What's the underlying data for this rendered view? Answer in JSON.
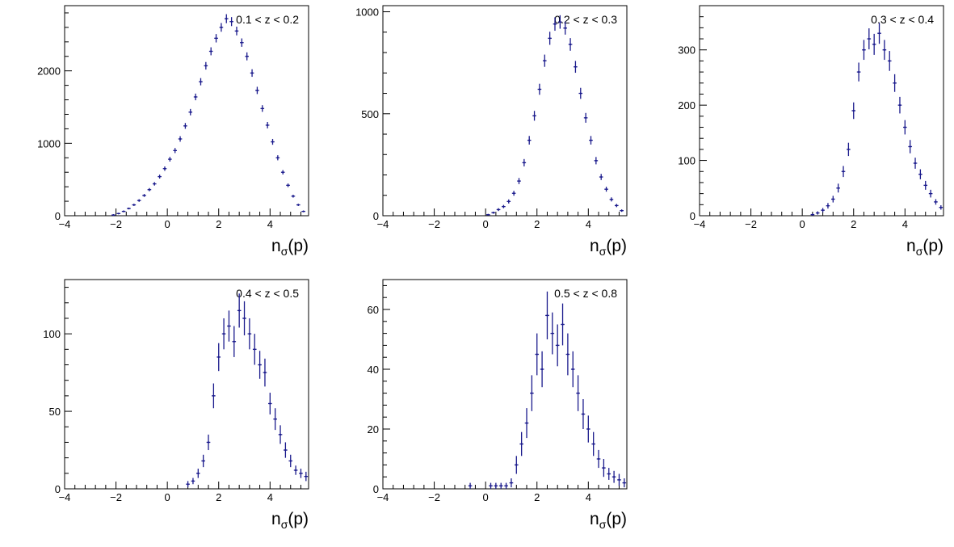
{
  "chart_data": [
    {
      "type": "scatter",
      "label": "0.1 < z < 0.2",
      "xlabel_main": "n",
      "xlabel_sub": "σ",
      "xlabel_arg": "(p)",
      "xlim": [
        -4,
        5.5
      ],
      "ylim": [
        0,
        2900
      ],
      "xticks": [
        -4,
        -2,
        0,
        2,
        4
      ],
      "yticks": [
        0,
        1000,
        2000
      ],
      "marker_color": "#1a1a8c",
      "x": [
        -2.1,
        -1.9,
        -1.7,
        -1.5,
        -1.3,
        -1.1,
        -0.9,
        -0.7,
        -0.5,
        -0.3,
        -0.1,
        0.1,
        0.3,
        0.5,
        0.7,
        0.9,
        1.1,
        1.3,
        1.5,
        1.7,
        1.9,
        2.1,
        2.3,
        2.5,
        2.7,
        2.9,
        3.1,
        3.3,
        3.5,
        3.7,
        3.9,
        4.1,
        4.3,
        4.5,
        4.7,
        4.9,
        5.1,
        5.3
      ],
      "y": [
        10,
        30,
        60,
        100,
        150,
        210,
        280,
        360,
        440,
        540,
        650,
        780,
        900,
        1060,
        1240,
        1430,
        1640,
        1850,
        2070,
        2270,
        2450,
        2600,
        2720,
        2680,
        2550,
        2390,
        2200,
        1970,
        1730,
        1480,
        1250,
        1020,
        800,
        600,
        420,
        270,
        150,
        60
      ],
      "yerr": [
        5,
        8,
        10,
        12,
        15,
        18,
        20,
        22,
        24,
        27,
        30,
        32,
        35,
        38,
        40,
        44,
        46,
        50,
        52,
        55,
        58,
        60,
        62,
        62,
        60,
        58,
        55,
        52,
        50,
        46,
        44,
        40,
        35,
        30,
        25,
        20,
        15,
        10
      ]
    },
    {
      "type": "scatter",
      "label": "0.2 < z < 0.3",
      "xlabel_main": "n",
      "xlabel_sub": "σ",
      "xlabel_arg": "(p)",
      "xlim": [
        -4,
        5.5
      ],
      "ylim": [
        0,
        1030
      ],
      "xticks": [
        -4,
        -2,
        0,
        2,
        4
      ],
      "yticks": [
        0,
        500,
        1000
      ],
      "marker_color": "#1a1a8c",
      "x": [
        0.1,
        0.3,
        0.5,
        0.7,
        0.9,
        1.1,
        1.3,
        1.5,
        1.7,
        1.9,
        2.1,
        2.3,
        2.5,
        2.7,
        2.9,
        3.1,
        3.3,
        3.5,
        3.7,
        3.9,
        4.1,
        4.3,
        4.5,
        4.7,
        4.9,
        5.1,
        5.3
      ],
      "y": [
        5,
        15,
        30,
        45,
        70,
        110,
        170,
        260,
        370,
        490,
        620,
        760,
        870,
        940,
        950,
        920,
        840,
        730,
        600,
        480,
        370,
        270,
        190,
        130,
        80,
        50,
        25
      ],
      "yerr": [
        3,
        5,
        7,
        8,
        10,
        12,
        15,
        18,
        21,
        24,
        27,
        30,
        32,
        33,
        33,
        32,
        31,
        29,
        27,
        24,
        21,
        18,
        15,
        12,
        10,
        8,
        6
      ]
    },
    {
      "type": "scatter",
      "label": "0.3 < z < 0.4",
      "xlabel_main": "n",
      "xlabel_sub": "σ",
      "xlabel_arg": "(p)",
      "xlim": [
        -4,
        5.5
      ],
      "ylim": [
        0,
        380
      ],
      "xticks": [
        -4,
        -2,
        0,
        2,
        4
      ],
      "yticks": [
        0,
        100,
        200,
        300
      ],
      "marker_color": "#1a1a8c",
      "x": [
        0.4,
        0.6,
        0.8,
        1.0,
        1.2,
        1.4,
        1.6,
        1.8,
        2.0,
        2.2,
        2.4,
        2.6,
        2.8,
        3.0,
        3.2,
        3.4,
        3.6,
        3.8,
        4.0,
        4.2,
        4.4,
        4.6,
        4.8,
        5.0,
        5.2,
        5.4
      ],
      "y": [
        2,
        5,
        10,
        18,
        30,
        50,
        80,
        120,
        190,
        260,
        300,
        320,
        310,
        330,
        300,
        280,
        240,
        200,
        160,
        125,
        95,
        75,
        55,
        40,
        25,
        15
      ],
      "yerr": [
        2,
        3,
        4,
        5,
        6,
        8,
        10,
        12,
        15,
        17,
        18,
        19,
        19,
        19,
        18,
        18,
        16,
        15,
        13,
        12,
        10,
        9,
        8,
        7,
        5,
        4
      ]
    },
    {
      "type": "scatter",
      "label": "0.4 < z < 0.5",
      "xlabel_main": "n",
      "xlabel_sub": "σ",
      "xlabel_arg": "(p)",
      "xlim": [
        -4,
        5.5
      ],
      "ylim": [
        0,
        135
      ],
      "xticks": [
        -4,
        -2,
        0,
        2,
        4
      ],
      "yticks": [
        0,
        50,
        100
      ],
      "marker_color": "#1a1a8c",
      "x": [
        0.8,
        1.0,
        1.2,
        1.4,
        1.6,
        1.8,
        2.0,
        2.2,
        2.4,
        2.6,
        2.8,
        3.0,
        3.2,
        3.4,
        3.6,
        3.8,
        4.0,
        4.2,
        4.4,
        4.6,
        4.8,
        5.0,
        5.2,
        5.4
      ],
      "y": [
        3,
        5,
        10,
        18,
        30,
        60,
        85,
        100,
        105,
        95,
        115,
        110,
        100,
        90,
        80,
        75,
        55,
        45,
        35,
        25,
        18,
        12,
        10,
        8
      ],
      "yerr": [
        2,
        2,
        3,
        4,
        5,
        8,
        9,
        10,
        10,
        10,
        11,
        11,
        10,
        10,
        9,
        9,
        7,
        7,
        6,
        5,
        4,
        3,
        3,
        3
      ]
    },
    {
      "type": "scatter",
      "label": "0.5 < z < 0.8",
      "xlabel_main": "n",
      "xlabel_sub": "σ",
      "xlabel_arg": "(p)",
      "xlim": [
        -4,
        5.5
      ],
      "ylim": [
        0,
        70
      ],
      "xticks": [
        -4,
        -2,
        0,
        2,
        4
      ],
      "yticks": [
        0,
        20,
        40,
        60
      ],
      "marker_color": "#1a1a8c",
      "x": [
        -0.6,
        0.2,
        0.4,
        0.6,
        0.8,
        1.0,
        1.2,
        1.4,
        1.6,
        1.8,
        2.0,
        2.2,
        2.4,
        2.6,
        2.8,
        3.0,
        3.2,
        3.4,
        3.6,
        3.8,
        4.0,
        4.2,
        4.4,
        4.6,
        4.8,
        5.0,
        5.2,
        5.4
      ],
      "y": [
        1,
        1,
        1,
        1,
        1,
        2,
        8,
        15,
        22,
        32,
        45,
        40,
        58,
        52,
        48,
        55,
        45,
        40,
        32,
        25,
        20,
        15,
        10,
        7,
        5,
        4,
        3,
        2
      ],
      "yerr": [
        1,
        1,
        1,
        1,
        1,
        1.5,
        3,
        4,
        5,
        6,
        7,
        6,
        8,
        7,
        7,
        7,
        7,
        6,
        6,
        5,
        4.5,
        4,
        3,
        3,
        2,
        2,
        2,
        1.5
      ]
    }
  ]
}
